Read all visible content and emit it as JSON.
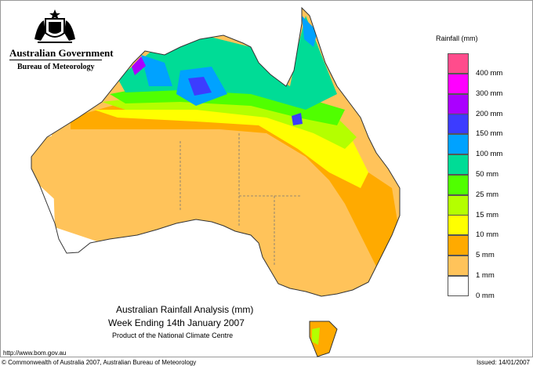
{
  "header": {
    "government": "Australian Government",
    "agency": "Bureau of Meteorology"
  },
  "legend": {
    "title": "Rainfall (mm)",
    "colors": [
      "#ff4c8c",
      "#ff00ff",
      "#aa00ff",
      "#3c3cff",
      "#00a2ff",
      "#00dc96",
      "#50ff00",
      "#b4ff00",
      "#ffff00",
      "#ffaa00",
      "#ffc35a",
      "#ffffff"
    ],
    "labels": [
      "400 mm",
      "300 mm",
      "200 mm",
      "150 mm",
      "100 mm",
      "50 mm",
      "25 mm",
      "15 mm",
      "10 mm",
      "5 mm",
      "1 mm",
      "0 mm"
    ]
  },
  "title": {
    "line1": "Australian Rainfall Analysis (mm)",
    "line2": "Week Ending 14th January 2007",
    "line3": "Product of the National Climate Centre"
  },
  "footer": {
    "url": "http://www.bom.gov.au",
    "copyright": "© Commonwealth of Australia 2007, Australian Bureau of Meteorology",
    "issued": "Issued: 14/01/2007"
  }
}
